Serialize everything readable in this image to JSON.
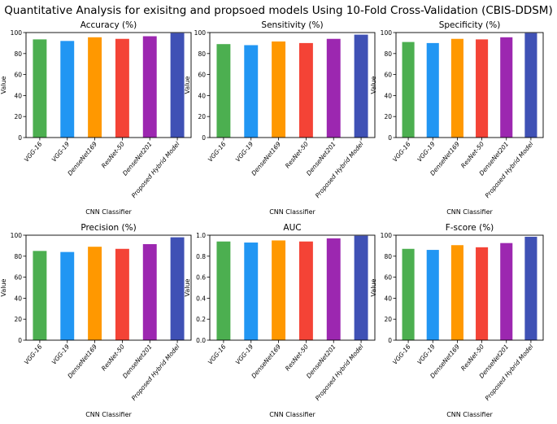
{
  "figure": {
    "title": "Quantitative Analysis for exisitng and propsoed models Using 10-Fold Cross-Validation (CBIS-DDSM)"
  },
  "colors": [
    "#4caf50",
    "#2196f3",
    "#ff9800",
    "#f44336",
    "#9c27b0",
    "#3f51b5"
  ],
  "chart_data": [
    {
      "type": "bar",
      "title": "Accuracy (%)",
      "xlabel": "CNN Classifier",
      "ylabel": "Value",
      "categories": [
        "VGG-16",
        "VGG-19",
        "DenseNet169",
        "ResNet-50",
        "DenseNet201",
        "Proposed Hybrid Model"
      ],
      "values": [
        93.5,
        92.0,
        95.5,
        94.0,
        96.5,
        99.5
      ],
      "ylim": [
        0,
        100
      ],
      "yticks": [
        0,
        20,
        40,
        60,
        80,
        100
      ],
      "ytick_labels": [
        "0",
        "20",
        "40",
        "60",
        "80",
        "100"
      ]
    },
    {
      "type": "bar",
      "title": "Sensitivity (%)",
      "xlabel": "CNN Classifier",
      "ylabel": "Value",
      "categories": [
        "VGG-16",
        "VGG-19",
        "DenseNet169",
        "ResNet-50",
        "DenseNet201",
        "Proposed Hybrid Model"
      ],
      "values": [
        89.0,
        88.0,
        91.5,
        90.0,
        94.0,
        98.0
      ],
      "ylim": [
        0,
        100
      ],
      "yticks": [
        0,
        20,
        40,
        60,
        80,
        100
      ],
      "ytick_labels": [
        "0",
        "20",
        "40",
        "60",
        "80",
        "100"
      ]
    },
    {
      "type": "bar",
      "title": "Specificity (%)",
      "xlabel": "CNN Classifier",
      "ylabel": "Value",
      "categories": [
        "VGG-16",
        "VGG-19",
        "DenseNet169",
        "ResNet-50",
        "DenseNet201",
        "Proposed Hybrid Model"
      ],
      "values": [
        91.0,
        90.0,
        94.0,
        93.5,
        95.5,
        99.5
      ],
      "ylim": [
        0,
        100
      ],
      "yticks": [
        0,
        20,
        40,
        60,
        80,
        100
      ],
      "ytick_labels": [
        "0",
        "20",
        "40",
        "60",
        "80",
        "100"
      ]
    },
    {
      "type": "bar",
      "title": "Precision (%)",
      "xlabel": "CNN Classifier",
      "ylabel": "Value",
      "categories": [
        "VGG-16",
        "VGG-19",
        "DenseNet169",
        "ResNet-50",
        "DenseNet201",
        "Proposed Hybrid Model"
      ],
      "values": [
        85.0,
        84.0,
        89.0,
        87.0,
        91.5,
        98.0
      ],
      "ylim": [
        0,
        100
      ],
      "yticks": [
        0,
        20,
        40,
        60,
        80,
        100
      ],
      "ytick_labels": [
        "0",
        "20",
        "40",
        "60",
        "80",
        "100"
      ]
    },
    {
      "type": "bar",
      "title": "AUC",
      "xlabel": "CNN Classifier",
      "ylabel": "Value",
      "categories": [
        "VGG-16",
        "VGG-19",
        "DenseNet169",
        "ResNet-50",
        "DenseNet201",
        "Proposed Hybrid Model"
      ],
      "values": [
        0.94,
        0.93,
        0.95,
        0.94,
        0.97,
        0.995
      ],
      "ylim": [
        0,
        1
      ],
      "yticks": [
        0,
        0.2,
        0.4,
        0.6,
        0.8,
        1.0
      ],
      "ytick_labels": [
        "0.0",
        "0.2",
        "0.4",
        "0.6",
        "0.8",
        "1.0"
      ]
    },
    {
      "type": "bar",
      "title": "F-score (%)",
      "xlabel": "CNN Classifier",
      "ylabel": "Value",
      "categories": [
        "VGG-16",
        "VGG-19",
        "DenseNet169",
        "ResNet-50",
        "DenseNet201",
        "Proposed Hybrid Model"
      ],
      "values": [
        87.0,
        86.0,
        90.5,
        88.5,
        92.5,
        98.5
      ],
      "ylim": [
        0,
        100
      ],
      "yticks": [
        0,
        20,
        40,
        60,
        80,
        100
      ],
      "ytick_labels": [
        "0",
        "20",
        "40",
        "60",
        "80",
        "100"
      ]
    }
  ]
}
